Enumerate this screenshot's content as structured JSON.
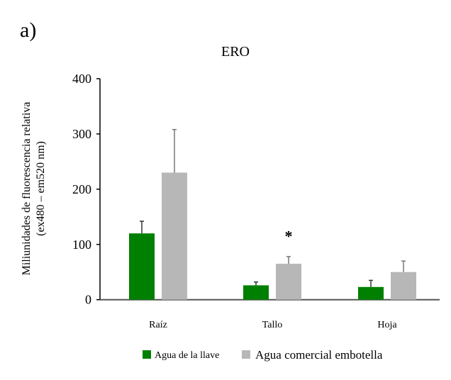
{
  "panel_label": "a)",
  "chart_data": {
    "type": "bar",
    "title": "ERO",
    "xlabel": "",
    "ylabel_lines": [
      "Miliunidades de fluorescencia relativa",
      "(ex480 – em520 nm)"
    ],
    "ylim": [
      0,
      400
    ],
    "yticks": [
      0,
      100,
      200,
      300,
      400
    ],
    "categories": [
      "Raíz",
      "Tallo",
      "Hoja"
    ],
    "series": [
      {
        "name": "Agua de la llave",
        "color": "#008000",
        "values": [
          120,
          26,
          23
        ],
        "errors": [
          22,
          6,
          12
        ]
      },
      {
        "name": "Agua comercial embotella",
        "color": "#b7b7b7",
        "values": [
          230,
          65,
          50
        ],
        "errors": [
          78,
          13,
          20
        ]
      }
    ],
    "annotations": [
      {
        "text": "*",
        "category": "Tallo",
        "series": 1,
        "y": 121
      }
    ],
    "legend_position": "bottom",
    "grid": false
  }
}
